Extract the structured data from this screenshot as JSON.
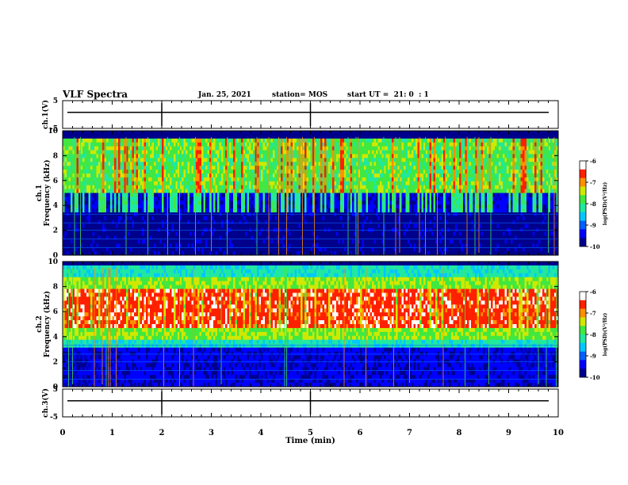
{
  "header": {
    "title": "VLF Spectra",
    "date": "Jan. 25, 2021",
    "station": "station= MOS",
    "start": "start UT =  21: 0  : 1"
  },
  "chart_data": [
    {
      "type": "line",
      "name": "ch1-waveform",
      "ylabel": "ch.1(V)",
      "ylim": [
        -5,
        5
      ],
      "yticks": [
        "5",
        "-5"
      ],
      "x": [
        0,
        10
      ],
      "values": [
        0,
        0
      ]
    },
    {
      "type": "heatmap",
      "name": "ch1-spectrogram",
      "ylabel": "ch.1\nFrequency (kHz)",
      "ylim": [
        0,
        10
      ],
      "yticks": [
        "0",
        "2",
        "4",
        "6",
        "8",
        "10"
      ],
      "colorbar": {
        "label": "log(PSD)(V²/Hz)",
        "range": [
          -10,
          -6
        ],
        "ticks": [
          "-6",
          "-7",
          "-8",
          "-9",
          "-10"
        ]
      }
    },
    {
      "type": "heatmap",
      "name": "ch2-spectrogram",
      "ylabel": "ch.2\nFrequency (kHz)",
      "ylim": [
        0,
        10
      ],
      "yticks": [
        "0",
        "2",
        "4",
        "6",
        "8",
        "10"
      ],
      "colorbar": {
        "label": "log(PSD)(V²/Hz)",
        "range": [
          -10,
          -6
        ],
        "ticks": [
          "-6",
          "-7",
          "-8",
          "-9",
          "-10"
        ]
      }
    },
    {
      "type": "line",
      "name": "ch3-waveform",
      "ylabel": "ch.3(V)",
      "ylim": [
        -5,
        5
      ],
      "yticks": [
        "5",
        "-5"
      ],
      "x": [
        0,
        10
      ],
      "values": [
        0,
        0
      ]
    }
  ],
  "xaxis": {
    "label": "Time (min)",
    "ticks": [
      "0",
      "1",
      "2",
      "3",
      "4",
      "5",
      "6",
      "7",
      "8",
      "9",
      "10"
    ]
  },
  "colors": {
    "colormap": [
      "#00008c",
      "#0000ff",
      "#0060ff",
      "#00c8ff",
      "#20e8a0",
      "#40e840",
      "#d0e800",
      "#ff9000",
      "#ff2000",
      "#ffffff"
    ]
  }
}
